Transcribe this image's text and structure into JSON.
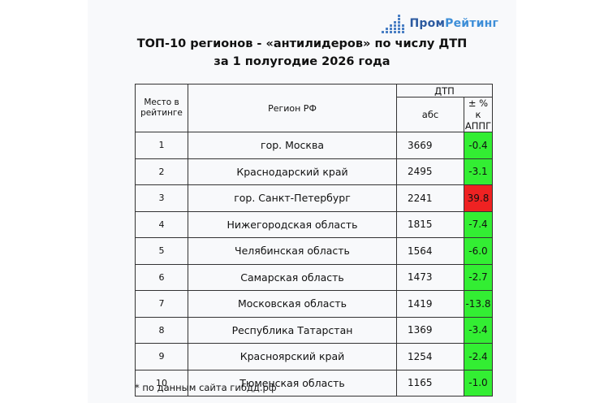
{
  "logo": {
    "part1": "Пром",
    "part2": "Рейтинг"
  },
  "title": {
    "line1": "ТОП-10 регионов - «антилидеров» по числу ДТП",
    "line2": "за 1 полугодие 2026 года"
  },
  "table": {
    "headers": {
      "place": "Место в рейтинге",
      "region": "Регион РФ",
      "dtp": "ДТП",
      "abs": "абс",
      "pct": "± % к АППГ"
    },
    "rows": [
      {
        "place": "1",
        "region": "гор. Москва",
        "abs": "3669",
        "pct": "-0.4",
        "color": "#33ee33"
      },
      {
        "place": "2",
        "region": "Краснодарский край",
        "abs": "2495",
        "pct": "-3.1",
        "color": "#33ee33"
      },
      {
        "place": "3",
        "region": "гор. Санкт-Петербург",
        "abs": "2241",
        "pct": "39.8",
        "color": "#ee2222"
      },
      {
        "place": "4",
        "region": "Нижегородская область",
        "abs": "1815",
        "pct": "-7.4",
        "color": "#33ee33"
      },
      {
        "place": "5",
        "region": "Челябинская область",
        "abs": "1564",
        "pct": "-6.0",
        "color": "#33ee33"
      },
      {
        "place": "6",
        "region": "Самарская область",
        "abs": "1473",
        "pct": "-2.7",
        "color": "#33ee33"
      },
      {
        "place": "7",
        "region": "Московская область",
        "abs": "1419",
        "pct": "-13.8",
        "color": "#33ee33"
      },
      {
        "place": "8",
        "region": "Республика Татарстан",
        "abs": "1369",
        "pct": "-3.4",
        "color": "#33ee33"
      },
      {
        "place": "9",
        "region": "Красноярский край",
        "abs": "1254",
        "pct": "-2.4",
        "color": "#33ee33"
      },
      {
        "place": "10",
        "region": "Тюменская область",
        "abs": "1165",
        "pct": "-1.0",
        "color": "#33ee33"
      }
    ]
  },
  "footnote": "* по данным сайта гибдд.рф"
}
